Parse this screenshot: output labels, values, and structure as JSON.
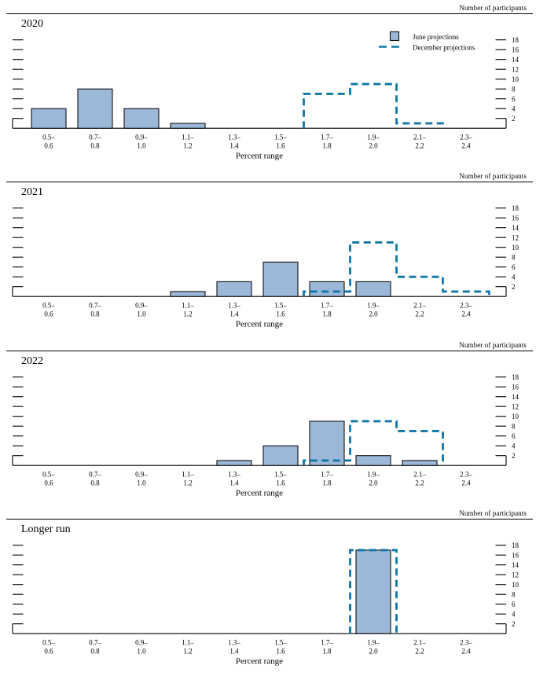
{
  "figure": {
    "participants_label": "Number of participants",
    "xlabel": "Percent range"
  },
  "legend": {
    "june_label": "June projections",
    "december_label": "December projections"
  },
  "colors": {
    "bar_fill": "#9cb8d9",
    "bar_stroke": "#111111",
    "step_line": "#0f76a8",
    "axis": "#000000"
  },
  "axis": {
    "yticks": [
      2,
      4,
      6,
      8,
      10,
      12,
      14,
      16,
      18
    ],
    "ymax": 18,
    "bin_labels": [
      [
        "0.5–",
        "0.6"
      ],
      [
        "0.7–",
        "0.8"
      ],
      [
        "0.9–",
        "1.0"
      ],
      [
        "1.1–",
        "1.2"
      ],
      [
        "1.3–",
        "1.4"
      ],
      [
        "1.5–",
        "1.6"
      ],
      [
        "1.7–",
        "1.8"
      ],
      [
        "1.9–",
        "2.0"
      ],
      [
        "2.1–",
        "2.2"
      ],
      [
        "2.3–",
        "2.4"
      ]
    ]
  },
  "chart_data": [
    {
      "type": "bar",
      "title": "2020",
      "ylabel": "Number of participants",
      "xlabel": "Percent range",
      "categories": [
        "0.5–0.6",
        "0.7–0.8",
        "0.9–1.0",
        "1.1–1.2",
        "1.3–1.4",
        "1.5–1.6",
        "1.7–1.8",
        "1.9–2.0",
        "2.1–2.2",
        "2.3–2.4"
      ],
      "ylim": [
        0,
        19
      ],
      "yticks": [
        2,
        4,
        6,
        8,
        10,
        12,
        14,
        16,
        18
      ],
      "legend_position": "top-right",
      "show_legend": true,
      "series": [
        {
          "name": "June projections",
          "style": "bar",
          "values": [
            4,
            8,
            4,
            1,
            0,
            0,
            0,
            0,
            0,
            0
          ]
        },
        {
          "name": "December projections",
          "style": "dashed-step",
          "values": [
            0,
            0,
            0,
            0,
            0,
            0,
            7,
            9,
            1,
            0
          ]
        }
      ]
    },
    {
      "type": "bar",
      "title": "2021",
      "ylabel": "Number of participants",
      "xlabel": "Percent range",
      "categories": [
        "0.5–0.6",
        "0.7–0.8",
        "0.9–1.0",
        "1.1–1.2",
        "1.3–1.4",
        "1.5–1.6",
        "1.7–1.8",
        "1.9–2.0",
        "2.1–2.2",
        "2.3–2.4"
      ],
      "ylim": [
        0,
        19
      ],
      "yticks": [
        2,
        4,
        6,
        8,
        10,
        12,
        14,
        16,
        18
      ],
      "show_legend": false,
      "series": [
        {
          "name": "June projections",
          "style": "bar",
          "values": [
            0,
            0,
            0,
            1,
            3,
            7,
            3,
            3,
            0,
            0
          ]
        },
        {
          "name": "December projections",
          "style": "dashed-step",
          "values": [
            0,
            0,
            0,
            0,
            0,
            0,
            1,
            11,
            4,
            1
          ]
        }
      ]
    },
    {
      "type": "bar",
      "title": "2022",
      "ylabel": "Number of participants",
      "xlabel": "Percent range",
      "categories": [
        "0.5–0.6",
        "0.7–0.8",
        "0.9–1.0",
        "1.1–1.2",
        "1.3–1.4",
        "1.5–1.6",
        "1.7–1.8",
        "1.9–2.0",
        "2.1–2.2",
        "2.3–2.4"
      ],
      "ylim": [
        0,
        19
      ],
      "yticks": [
        2,
        4,
        6,
        8,
        10,
        12,
        14,
        16,
        18
      ],
      "show_legend": false,
      "series": [
        {
          "name": "June projections",
          "style": "bar",
          "values": [
            0,
            0,
            0,
            0,
            1,
            4,
            9,
            2,
            1,
            0
          ]
        },
        {
          "name": "December projections",
          "style": "dashed-step",
          "values": [
            0,
            0,
            0,
            0,
            0,
            0,
            1,
            9,
            7,
            0
          ]
        }
      ]
    },
    {
      "type": "bar",
      "title": "Longer run",
      "ylabel": "Number of participants",
      "xlabel": "Percent range",
      "categories": [
        "0.5–0.6",
        "0.7–0.8",
        "0.9–1.0",
        "1.1–1.2",
        "1.3–1.4",
        "1.5–1.6",
        "1.7–1.8",
        "1.9–2.0",
        "2.1–2.2",
        "2.3–2.4"
      ],
      "ylim": [
        0,
        19
      ],
      "yticks": [
        2,
        4,
        6,
        8,
        10,
        12,
        14,
        16,
        18
      ],
      "show_legend": false,
      "series": [
        {
          "name": "June projections",
          "style": "bar",
          "values": [
            0,
            0,
            0,
            0,
            0,
            0,
            0,
            17,
            0,
            0
          ]
        },
        {
          "name": "December projections",
          "style": "dashed-step",
          "values": [
            0,
            0,
            0,
            0,
            0,
            0,
            0,
            17,
            0,
            0
          ]
        }
      ]
    }
  ]
}
